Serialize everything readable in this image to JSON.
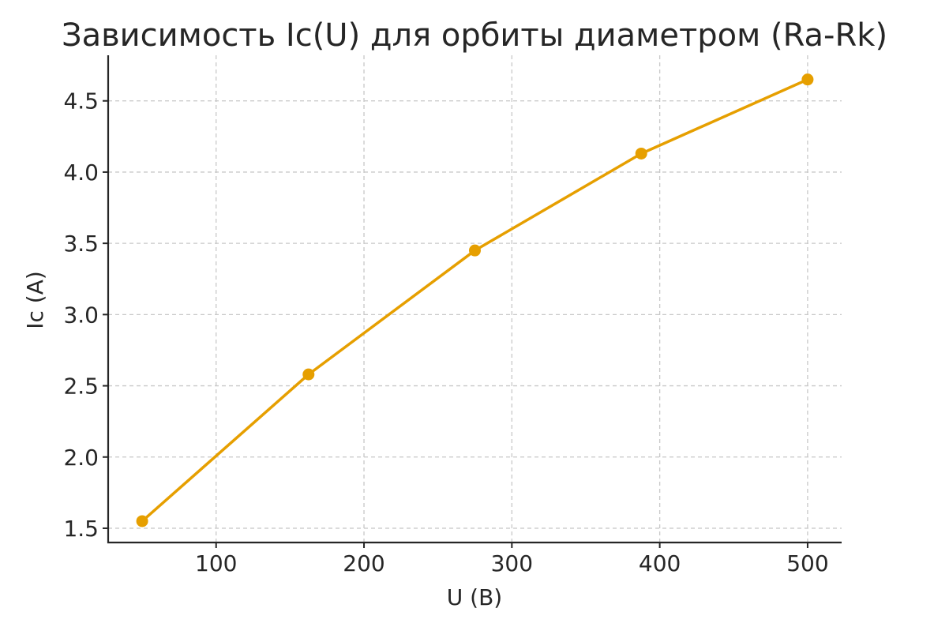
{
  "chart_data": {
    "type": "line",
    "title": "Зависимость Ic(U) для орбиты диаметром (Ra-Rk)",
    "xlabel": "U (В)",
    "ylabel": "Ic (A)",
    "xlim": [
      27,
      523
    ],
    "ylim": [
      1.4,
      4.82
    ],
    "x_ticks": [
      100,
      200,
      300,
      400,
      500
    ],
    "x_tick_labels": [
      "100",
      "200",
      "300",
      "400",
      "500"
    ],
    "y_ticks": [
      1.5,
      2.0,
      2.5,
      3.0,
      3.5,
      4.0,
      4.5
    ],
    "y_tick_labels": [
      "1.5",
      "2.0",
      "2.5",
      "3.0",
      "3.5",
      "4.0",
      "4.5"
    ],
    "grid": true,
    "color": "#E69F00",
    "series": [
      {
        "x": [
          50,
          162.5,
          275,
          387.5,
          500
        ],
        "y": [
          1.55,
          2.58,
          3.45,
          4.13,
          4.65
        ]
      }
    ]
  }
}
